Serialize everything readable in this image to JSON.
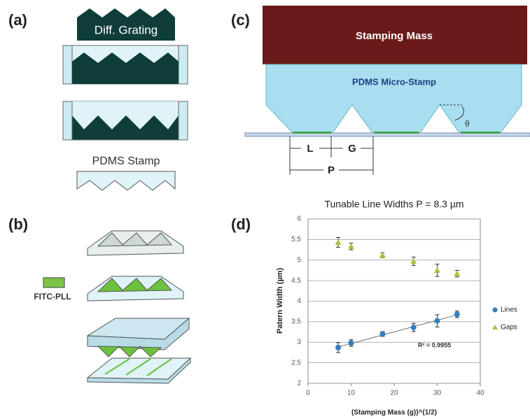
{
  "panels": {
    "a": {
      "label": "(a)",
      "grating": "Diff. Grating",
      "stamp": "PDMS Stamp"
    },
    "b": {
      "label": "(b)",
      "ink": "FITC-PLL"
    },
    "c": {
      "label": "(c)",
      "mass": "Stamping Mass",
      "stamp": "PDMS Micro-Stamp",
      "dims": [
        "L",
        "G",
        "P"
      ],
      "angle": "θ"
    },
    "d": {
      "label": "(d)"
    }
  },
  "chart_data": {
    "type": "scatter",
    "title": "Tunable Line Widths P = 8.3 µm",
    "x_label": "(Stamping Mass (g))^(1/2)",
    "y_label": "Patern Width (µm)",
    "x": [
      7,
      10,
      17.3,
      24.5,
      30,
      34.6
    ],
    "series": [
      {
        "name": "Lines",
        "color": "#2f7fc1",
        "marker": "circle",
        "values": [
          2.87,
          2.98,
          3.2,
          3.36,
          3.52,
          3.68
        ],
        "errors": [
          0.12,
          0.08,
          0.06,
          0.1,
          0.15,
          0.08
        ]
      },
      {
        "name": "Gaps",
        "color": "#a4c639",
        "marker": "triangle",
        "values": [
          5.43,
          5.33,
          5.12,
          4.97,
          4.75,
          4.67
        ],
        "errors": [
          0.12,
          0.08,
          0.06,
          0.1,
          0.15,
          0.08
        ]
      }
    ],
    "annotation": "R² = 0.9955",
    "xlim": [
      0,
      40
    ],
    "xticks": [
      0,
      10,
      20,
      30,
      40
    ],
    "ylim": [
      2,
      6
    ],
    "yticks": [
      2,
      2.5,
      3,
      3.5,
      4,
      4.5,
      5,
      5.5,
      6
    ],
    "grid": true,
    "trendline_series": 0,
    "legend": "right"
  }
}
